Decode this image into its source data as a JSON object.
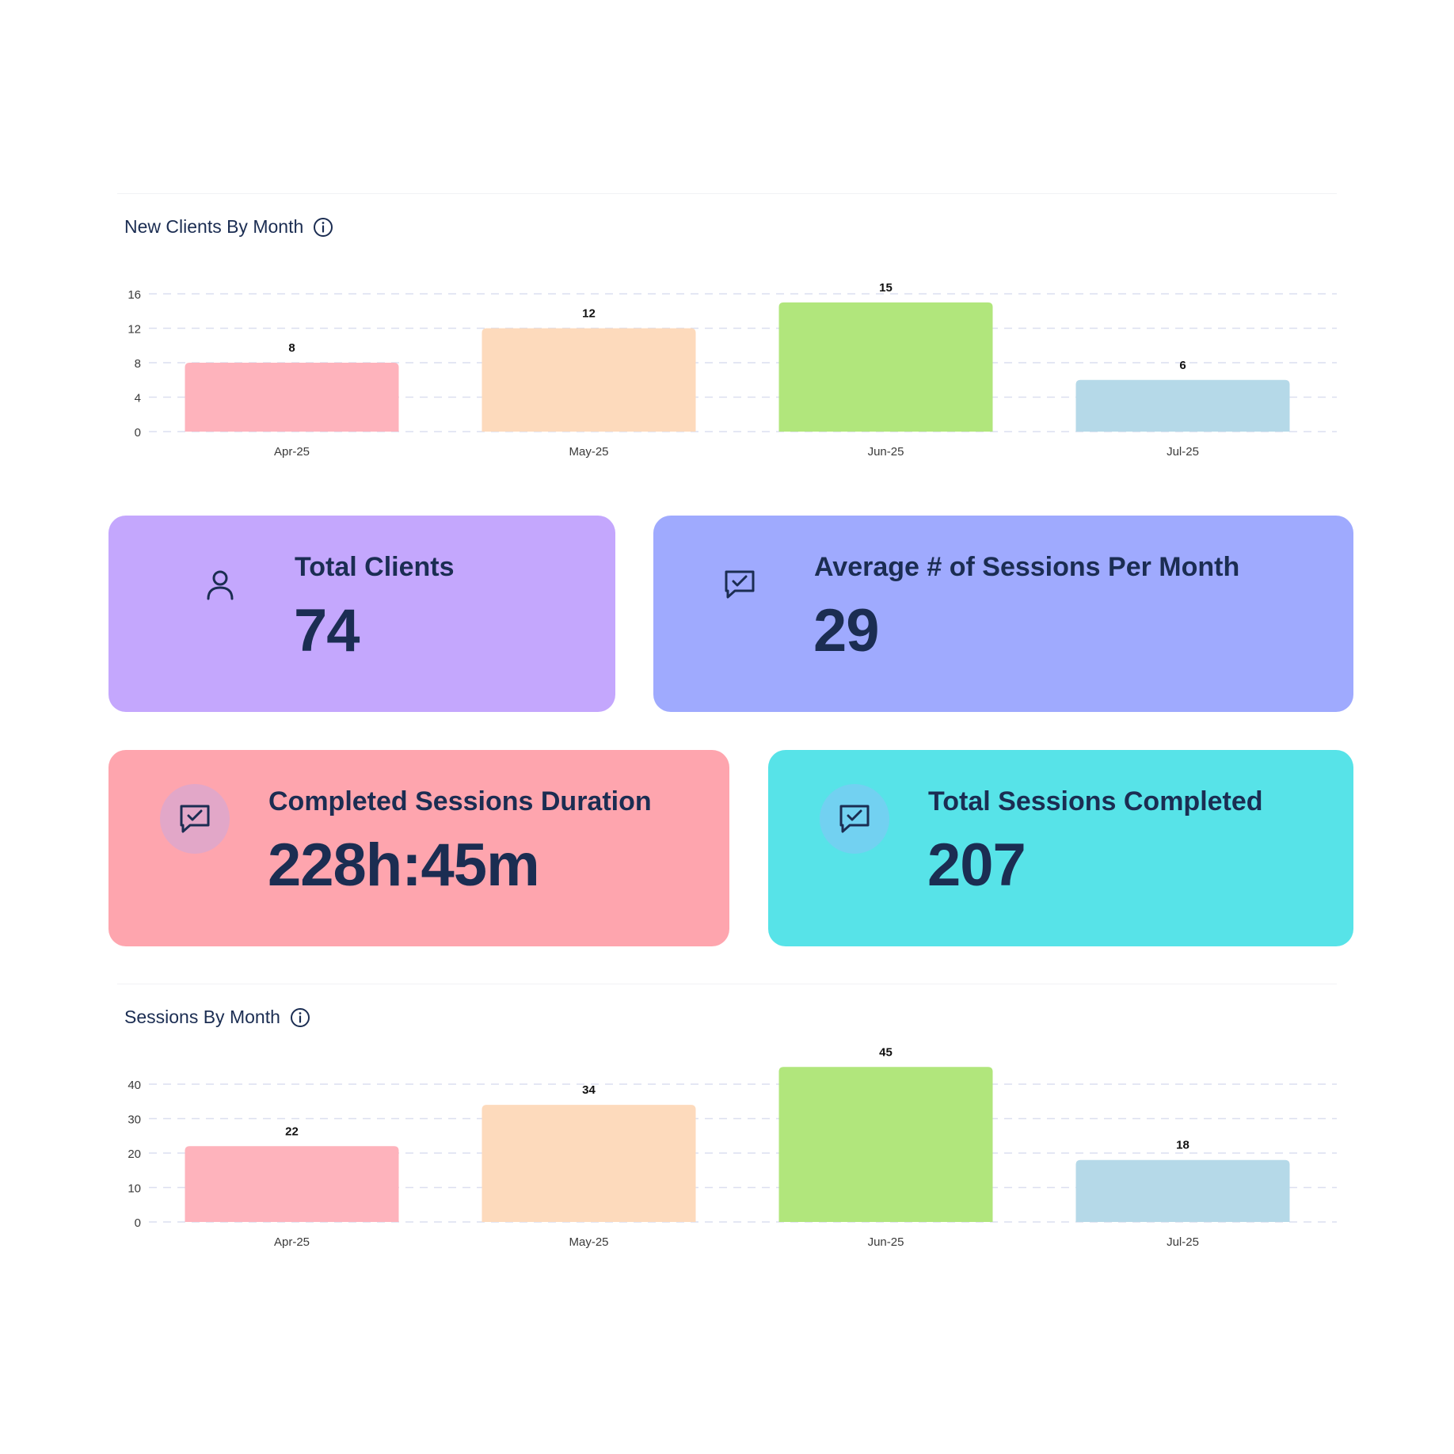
{
  "colors": {
    "bar_colors": [
      "#feb3bc",
      "#fddabc",
      "#b1e67c",
      "#b5d9e8"
    ],
    "text_dark": "#1b2d52",
    "grid": "#dcdff0",
    "card_purple": "#c4a7fd",
    "card_blue": "#9faafe",
    "card_pink": "#fea5ae",
    "card_cyan": "#57e3e8"
  },
  "panels": {
    "new_clients": {
      "title": "New Clients By Month",
      "icon": "info-icon"
    },
    "sessions": {
      "title": "Sessions By Month",
      "icon": "info-icon"
    }
  },
  "cards": {
    "total_clients": {
      "label": "Total Clients",
      "value": "74",
      "icon": "user-icon"
    },
    "avg_sessions": {
      "label": "Average # of Sessions Per Month",
      "value": "29",
      "icon": "message-check-icon"
    },
    "completed_duration": {
      "label": "Completed Sessions Duration",
      "value": "228h:45m",
      "icon": "message-check-icon"
    },
    "total_completed": {
      "label": "Total Sessions Completed",
      "value": "207",
      "icon": "message-check-icon"
    }
  },
  "chart_data": [
    {
      "type": "bar",
      "title": "New Clients By Month",
      "categories": [
        "Apr-25",
        "May-25",
        "Jun-25",
        "Jul-25"
      ],
      "values": [
        8,
        12,
        15,
        6
      ],
      "yticks": [
        0,
        4,
        8,
        12,
        16
      ],
      "ylim": [
        0,
        16
      ],
      "grid": true,
      "data_labels": true
    },
    {
      "type": "bar",
      "title": "Sessions By Month",
      "categories": [
        "Apr-25",
        "May-25",
        "Jun-25",
        "Jul-25"
      ],
      "values": [
        22,
        34,
        45,
        18
      ],
      "yticks": [
        0,
        10,
        20,
        30,
        40
      ],
      "ylim": [
        0,
        40
      ],
      "grid": true,
      "data_labels": true
    }
  ]
}
